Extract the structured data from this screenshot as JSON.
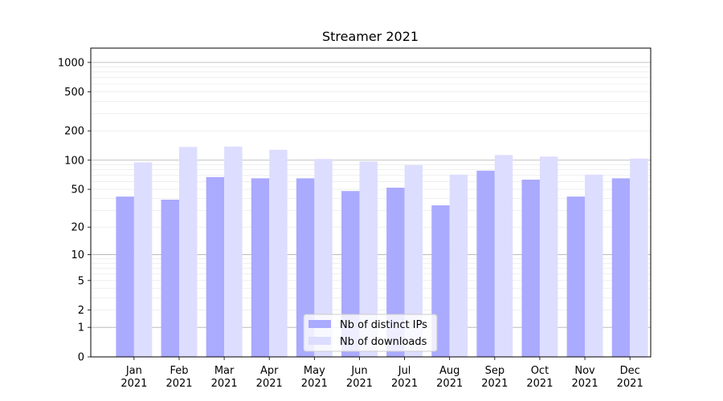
{
  "chart_data": {
    "type": "bar",
    "title": "Streamer 2021",
    "xlabel": "",
    "ylabel": "",
    "y_scale": "log(1+y)",
    "yticks": [
      0,
      1,
      2,
      5,
      10,
      20,
      50,
      100,
      200,
      500,
      1000
    ],
    "grid": "y (major and minor)",
    "legend_position": "bottom-center",
    "categories": [
      [
        "Jan",
        "2021"
      ],
      [
        "Feb",
        "2021"
      ],
      [
        "Mar",
        "2021"
      ],
      [
        "Apr",
        "2021"
      ],
      [
        "May",
        "2021"
      ],
      [
        "Jun",
        "2021"
      ],
      [
        "Jul",
        "2021"
      ],
      [
        "Aug",
        "2021"
      ],
      [
        "Sep",
        "2021"
      ],
      [
        "Oct",
        "2021"
      ],
      [
        "Nov",
        "2021"
      ],
      [
        "Dec",
        "2021"
      ]
    ],
    "series": [
      {
        "name": "Nb of distinct IPs",
        "color": "#aaaaff",
        "values": [
          42,
          39,
          67,
          65,
          65,
          48,
          52,
          34,
          78,
          63,
          42,
          65
        ]
      },
      {
        "name": "Nb of downloads",
        "color": "#ddddff",
        "values": [
          95,
          137,
          138,
          128,
          103,
          97,
          89,
          71,
          113,
          109,
          71,
          104
        ]
      }
    ]
  }
}
